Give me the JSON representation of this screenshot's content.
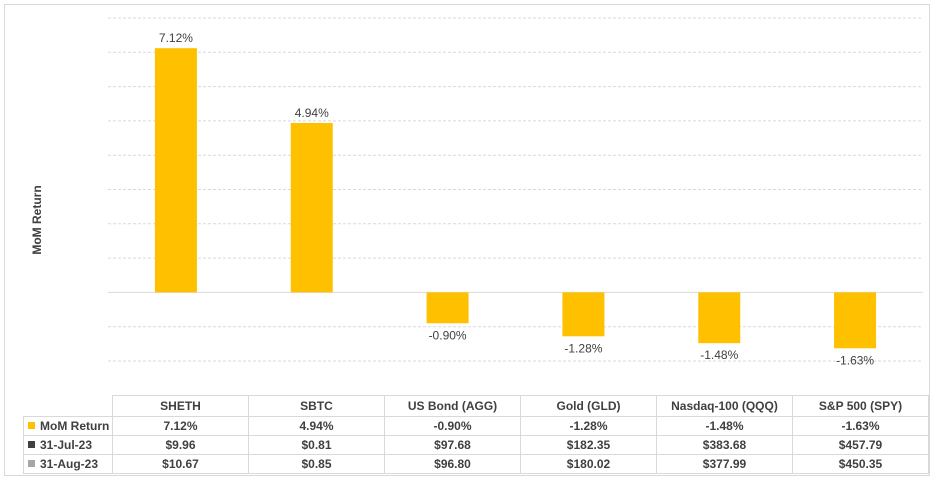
{
  "chart_data": {
    "type": "bar",
    "ylabel": "MoM Return",
    "categories": [
      "SHETH",
      "SBTC",
      "US Bond (AGG)",
      "Gold (GLD)",
      "Nasdaq-100 (QQQ)",
      "S&P 500 (SPY)"
    ],
    "series": [
      {
        "name": "MoM Return",
        "values": [
          7.12,
          4.94,
          -0.9,
          -1.28,
          -1.48,
          -1.63
        ],
        "color": "#FFC000"
      }
    ],
    "data_labels": [
      "7.12%",
      "4.94%",
      "-0.90%",
      "-1.28%",
      "-1.48%",
      "-1.63%"
    ],
    "ylim": [
      -2.0,
      8.0
    ],
    "grid": true,
    "colors": {
      "bar": "#FFC000",
      "grid": "#d9d9d9",
      "text": "#404040"
    },
    "data_table": {
      "rows": [
        {
          "label": "MoM Return",
          "swatch": "#FFC000",
          "values": [
            "7.12%",
            "4.94%",
            "-0.90%",
            "-1.28%",
            "-1.48%",
            "-1.63%"
          ]
        },
        {
          "label": "31-Jul-23",
          "swatch": "#404040",
          "values": [
            "$9.96",
            "$0.81",
            "$97.68",
            "$182.35",
            "$383.68",
            "$457.79"
          ]
        },
        {
          "label": "31-Aug-23",
          "swatch": "#a6a6a6",
          "values": [
            "$10.67",
            "$0.85",
            "$96.80",
            "$180.02",
            "$377.99",
            "$450.35"
          ]
        }
      ]
    }
  }
}
